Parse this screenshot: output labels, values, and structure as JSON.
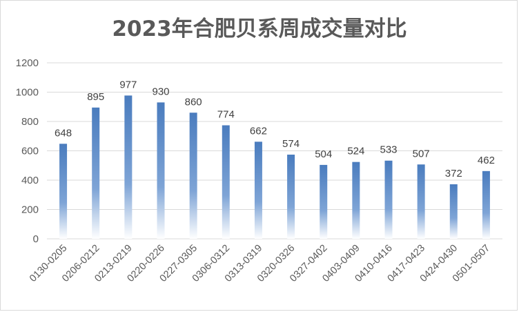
{
  "chart_data": {
    "type": "bar",
    "title": "2023年合肥贝系周成交量对比",
    "categories": [
      "0130-0205",
      "0206-0212",
      "0213-0219",
      "0220-0226",
      "0227-0305",
      "0306-0312",
      "0313-0319",
      "0320-0326",
      "0327-0402",
      "0403-0409",
      "0410-0416",
      "0417-0423",
      "0424-0430",
      "0501-0507"
    ],
    "values": [
      648,
      895,
      977,
      930,
      860,
      774,
      662,
      574,
      504,
      524,
      533,
      507,
      372,
      462
    ],
    "y_ticks": [
      "0",
      "200",
      "400",
      "600",
      "800",
      "1000",
      "1200"
    ],
    "ylim": [
      0,
      1200
    ],
    "grid": true,
    "bar_color": "#4f7fbf"
  }
}
